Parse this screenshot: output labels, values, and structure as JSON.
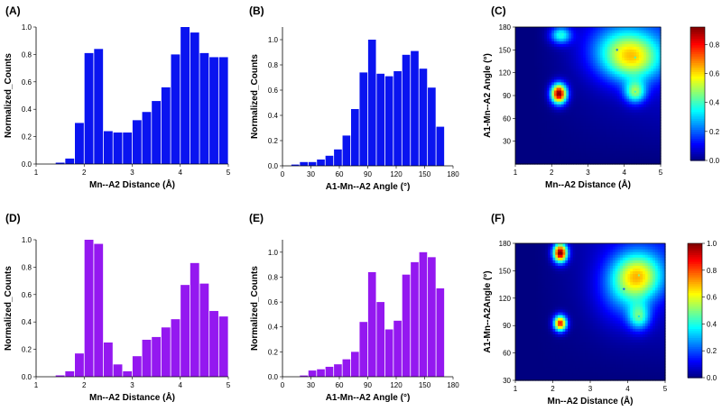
{
  "chart_data": [
    {
      "id": "A",
      "panel_label": "(A)",
      "type": "bar",
      "xlabel": "Mn--A2 Distance (Å)",
      "ylabel": "Normalized_Counts",
      "xlim": [
        1,
        5
      ],
      "ylim": [
        0,
        1.0
      ],
      "xticks": [
        1,
        2,
        3,
        4,
        5
      ],
      "yticks": [
        0.0,
        0.2,
        0.4,
        0.6,
        0.8,
        1.0
      ],
      "bar_width": 0.2,
      "color": "#0a14f0",
      "x": [
        1.5,
        1.7,
        1.9,
        2.1,
        2.3,
        2.5,
        2.7,
        2.9,
        3.1,
        3.3,
        3.5,
        3.7,
        3.9,
        4.1,
        4.3,
        4.5,
        4.7,
        4.9
      ],
      "values": [
        0.01,
        0.04,
        0.3,
        0.81,
        0.84,
        0.24,
        0.23,
        0.23,
        0.32,
        0.38,
        0.46,
        0.56,
        0.8,
        1.0,
        0.96,
        0.81,
        0.78,
        0.78
      ]
    },
    {
      "id": "B",
      "panel_label": "(B)",
      "type": "bar",
      "xlabel": "A1-Mn--A2 Angle (°)",
      "ylabel": "Normalized_Counts",
      "xlim": [
        0,
        180
      ],
      "ylim": [
        0,
        1.1
      ],
      "xticks": [
        0,
        30,
        60,
        90,
        120,
        150,
        180
      ],
      "yticks": [
        0.0,
        0.2,
        0.4,
        0.6,
        0.8,
        1.0
      ],
      "bar_width": 9,
      "color": "#0a14f0",
      "x": [
        4.5,
        13.5,
        22.5,
        31.5,
        40.5,
        49.5,
        58.5,
        67.5,
        76.5,
        85.5,
        94.5,
        103.5,
        112.5,
        121.5,
        130.5,
        139.5,
        148.5,
        157.5,
        166.5,
        175.5
      ],
      "values": [
        0.0,
        0.01,
        0.03,
        0.03,
        0.05,
        0.08,
        0.13,
        0.24,
        0.45,
        0.74,
        1.0,
        0.73,
        0.71,
        0.75,
        0.88,
        0.91,
        0.77,
        0.62,
        0.31,
        0.0
      ]
    },
    {
      "id": "C",
      "panel_label": "(C)",
      "type": "heatmap",
      "xlabel": "Mn--A2 Distance (Å)",
      "ylabel": "A1-Mn--A2 Angle (°)",
      "xlim": [
        1,
        5
      ],
      "ylim": [
        0,
        180
      ],
      "xticks": [
        1,
        2,
        3,
        4,
        5
      ],
      "yticks": [
        30,
        60,
        90,
        120,
        150,
        180
      ],
      "colorbar_ticks": [
        0.0,
        0.2,
        0.4,
        0.6,
        0.8
      ],
      "colorbar_range": [
        0,
        0.92
      ],
      "hotspots": [
        {
          "x": 2.2,
          "y": 93,
          "value": 0.92,
          "sx": 0.15,
          "sy": 9
        },
        {
          "x": 2.25,
          "y": 170,
          "value": 0.35,
          "sx": 0.2,
          "sy": 8
        },
        {
          "x": 4.3,
          "y": 140,
          "value": 0.4,
          "sx": 0.55,
          "sy": 22
        },
        {
          "x": 4.3,
          "y": 95,
          "value": 0.38,
          "sx": 0.2,
          "sy": 10
        },
        {
          "x": 3.8,
          "y": 150,
          "value": 0.22,
          "sx": 0.6,
          "sy": 25
        }
      ]
    },
    {
      "id": "D",
      "panel_label": "(D)",
      "type": "bar",
      "xlabel": "Mn--A2 Distance (Å)",
      "ylabel": "Normalized_Counts",
      "xlim": [
        1,
        5
      ],
      "ylim": [
        0,
        1.0
      ],
      "xticks": [
        1,
        2,
        3,
        4,
        5
      ],
      "yticks": [
        0.0,
        0.2,
        0.4,
        0.6,
        0.8,
        1.0
      ],
      "bar_width": 0.2,
      "color": "#9418f0",
      "x": [
        1.5,
        1.7,
        1.9,
        2.1,
        2.3,
        2.5,
        2.7,
        2.9,
        3.1,
        3.3,
        3.5,
        3.7,
        3.9,
        4.1,
        4.3,
        4.5,
        4.7,
        4.9
      ],
      "values": [
        0.01,
        0.04,
        0.17,
        1.0,
        0.97,
        0.25,
        0.09,
        0.04,
        0.15,
        0.27,
        0.29,
        0.36,
        0.42,
        0.67,
        0.83,
        0.68,
        0.48,
        0.44
      ]
    },
    {
      "id": "E",
      "panel_label": "(E)",
      "type": "bar",
      "xlabel": "A1-Mn--A2 Angle (°)",
      "ylabel": "Normalized_Counts",
      "xlim": [
        0,
        180
      ],
      "ylim": [
        0,
        1.1
      ],
      "xticks": [
        0,
        30,
        60,
        90,
        120,
        150,
        180
      ],
      "yticks": [
        0.0,
        0.2,
        0.4,
        0.6,
        0.8,
        1.0
      ],
      "bar_width": 9,
      "color": "#9418f0",
      "x": [
        4.5,
        13.5,
        22.5,
        31.5,
        40.5,
        49.5,
        58.5,
        67.5,
        76.5,
        85.5,
        94.5,
        103.5,
        112.5,
        121.5,
        130.5,
        139.5,
        148.5,
        157.5,
        166.5,
        175.5
      ],
      "values": [
        0.0,
        0.0,
        0.01,
        0.05,
        0.06,
        0.08,
        0.1,
        0.14,
        0.2,
        0.44,
        0.84,
        0.6,
        0.38,
        0.45,
        0.82,
        0.92,
        1.0,
        0.96,
        0.71,
        0.0
      ]
    },
    {
      "id": "F",
      "panel_label": "(F)",
      "type": "heatmap",
      "xlabel": "Mn--A2 Distance (Å)",
      "ylabel": "A1-Mn--A2Angle (°)",
      "xlim": [
        1,
        5
      ],
      "ylim": [
        30,
        180
      ],
      "xticks": [
        1,
        2,
        3,
        4,
        5
      ],
      "yticks": [
        30,
        60,
        90,
        120,
        150,
        180
      ],
      "colorbar_ticks": [
        0.0,
        0.2,
        0.4,
        0.6,
        0.8,
        1.0
      ],
      "colorbar_range": [
        0,
        1.0
      ],
      "hotspots": [
        {
          "x": 2.2,
          "y": 170,
          "value": 1.0,
          "sx": 0.13,
          "sy": 7
        },
        {
          "x": 2.2,
          "y": 93,
          "value": 0.85,
          "sx": 0.12,
          "sy": 6
        },
        {
          "x": 4.3,
          "y": 145,
          "value": 0.5,
          "sx": 0.45,
          "sy": 18
        },
        {
          "x": 4.3,
          "y": 100,
          "value": 0.35,
          "sx": 0.2,
          "sy": 10
        },
        {
          "x": 3.9,
          "y": 130,
          "value": 0.2,
          "sx": 0.5,
          "sy": 25
        }
      ]
    }
  ]
}
